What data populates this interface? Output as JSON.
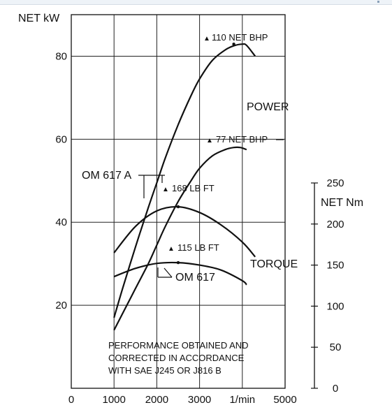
{
  "chart_data": {
    "type": "line",
    "x": {
      "label": "1/min",
      "range": [
        0,
        5000
      ],
      "tick_labels": [
        "0",
        "1000",
        "2000",
        "3000",
        "1/min",
        "5000"
      ]
    },
    "y_left": {
      "label": "NET kW",
      "range": [
        0,
        90
      ],
      "tick_labels": [
        "20",
        "40",
        "60",
        "80"
      ]
    },
    "y_right": {
      "label": "NET Nm",
      "range": [
        0,
        250
      ],
      "tick_labels": [
        "0",
        "50",
        "100",
        "150",
        "200",
        "250"
      ]
    },
    "grid": true,
    "series": [
      {
        "name": "OM 617 A",
        "measure": "POWER",
        "axis": "left",
        "x": [
          1000,
          1200,
          1500,
          1800,
          2000,
          2200,
          2500,
          2800,
          3000,
          3300,
          3600,
          3800,
          4000,
          4100,
          4300
        ],
        "y": [
          17,
          24,
          34,
          43.5,
          49.5,
          55.5,
          63.5,
          70.5,
          74.5,
          79,
          81.5,
          82.5,
          82.9,
          82.6,
          80
        ]
      },
      {
        "name": "OM 617",
        "measure": "POWER",
        "axis": "left",
        "x": [
          1000,
          1200,
          1500,
          1800,
          2000,
          2200,
          2500,
          2800,
          3000,
          3300,
          3600,
          3800,
          3950,
          4100
        ],
        "y": [
          14,
          18,
          24,
          30,
          34.5,
          39,
          45,
          50,
          53,
          56,
          57.5,
          58,
          58,
          57.5
        ]
      },
      {
        "name": "OM 617 A",
        "measure": "TORQUE",
        "axis": "right",
        "x": [
          1000,
          1500,
          2000,
          2500,
          3000,
          3500,
          4000,
          4300
        ],
        "y": [
          165,
          197,
          216,
          221,
          214,
          199,
          178,
          160
        ]
      },
      {
        "name": "OM 617",
        "measure": "TORQUE",
        "axis": "right",
        "x": [
          1000,
          1500,
          2000,
          2500,
          3000,
          3500,
          4000,
          4100
        ],
        "y": [
          136,
          146,
          152,
          153,
          150,
          144,
          131,
          126
        ]
      }
    ],
    "annotations": [
      {
        "id": "power_a",
        "text": "110 NET BHP",
        "x": 3800,
        "y": 82.9,
        "axis": "left"
      },
      {
        "id": "power_b",
        "text": "77 NET BHP",
        "x": 3950,
        "y": 58,
        "axis": "right_edge"
      },
      {
        "id": "torque_a",
        "text": "168 LB FT",
        "x": 2500,
        "y": 221,
        "axis": "right"
      },
      {
        "id": "torque_b",
        "text": "115 LB FT",
        "x": 2500,
        "y": 153,
        "axis": "right"
      }
    ],
    "labels": {
      "power": "POWER",
      "torque": "TORQUE",
      "om617a": "OM 617 A",
      "om617": "OM 617"
    },
    "footnote": [
      "PERFORMANCE OBTAINED AND",
      "CORRECTED IN ACCORDANCE",
      "WITH SAE J245 OR J816 B"
    ]
  }
}
